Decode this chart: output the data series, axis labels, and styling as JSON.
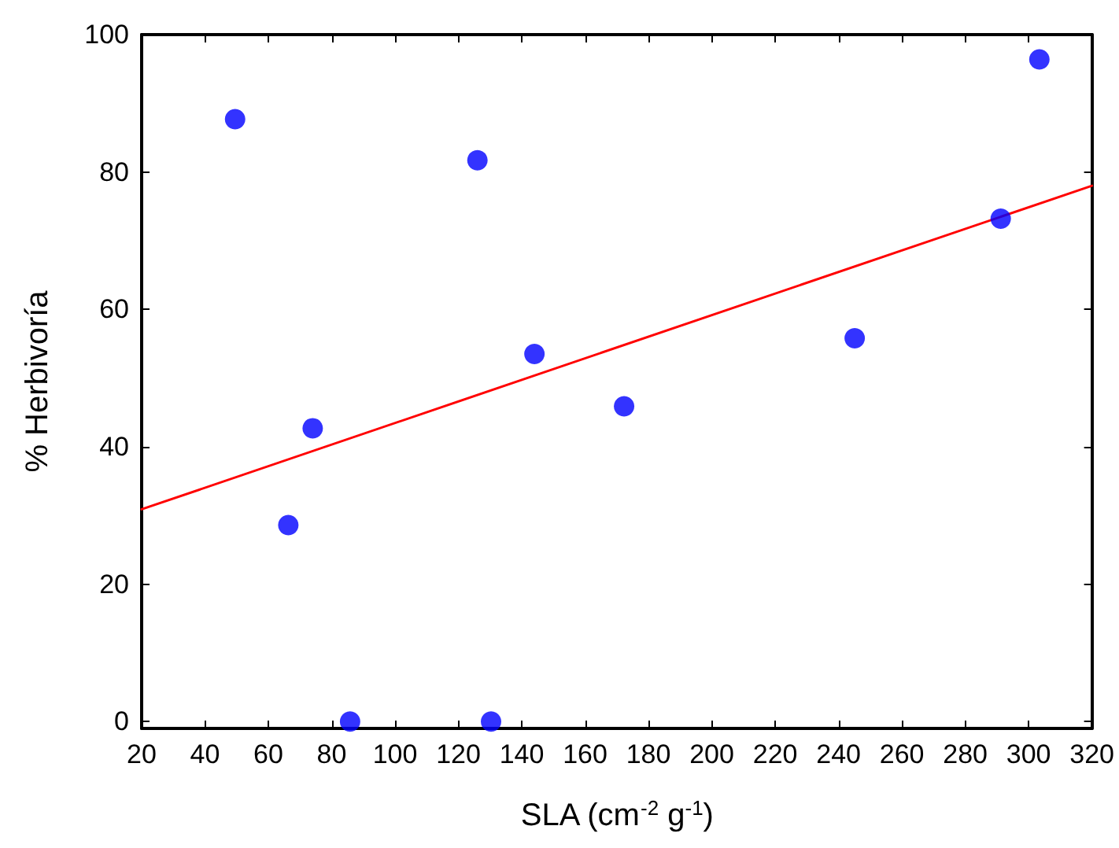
{
  "chart_data": {
    "type": "scatter",
    "xlabel": "SLA (cm$^{-2}$ g$^{-1}$)",
    "ylabel": "% Herbivoría",
    "xlim": [
      20,
      320
    ],
    "xticks": [
      20,
      40,
      60,
      80,
      100,
      120,
      140,
      160,
      180,
      200,
      220,
      240,
      260,
      280,
      300,
      320
    ],
    "ylim": [
      -1,
      100
    ],
    "yticks": [
      0,
      20,
      40,
      60,
      80,
      100
    ],
    "grid": false,
    "marker": "circle",
    "series": [
      {
        "color": "#0000ff",
        "x": [
          49.5,
          66.3,
          74,
          85.8,
          126,
          130.3,
          144,
          172.3,
          245.1,
          291.2,
          303.4
        ],
        "values": [
          87.7,
          28.6,
          42.7,
          0,
          81.7,
          0,
          53.5,
          45.9,
          55.8,
          73.2,
          96.4
        ]
      },
      {
        "type": "line",
        "color": "#ff0000",
        "marker": "none",
        "line_style": "solid",
        "x": [
          20,
          320
        ],
        "values": [
          30.9,
          78
        ]
      }
    ]
  }
}
